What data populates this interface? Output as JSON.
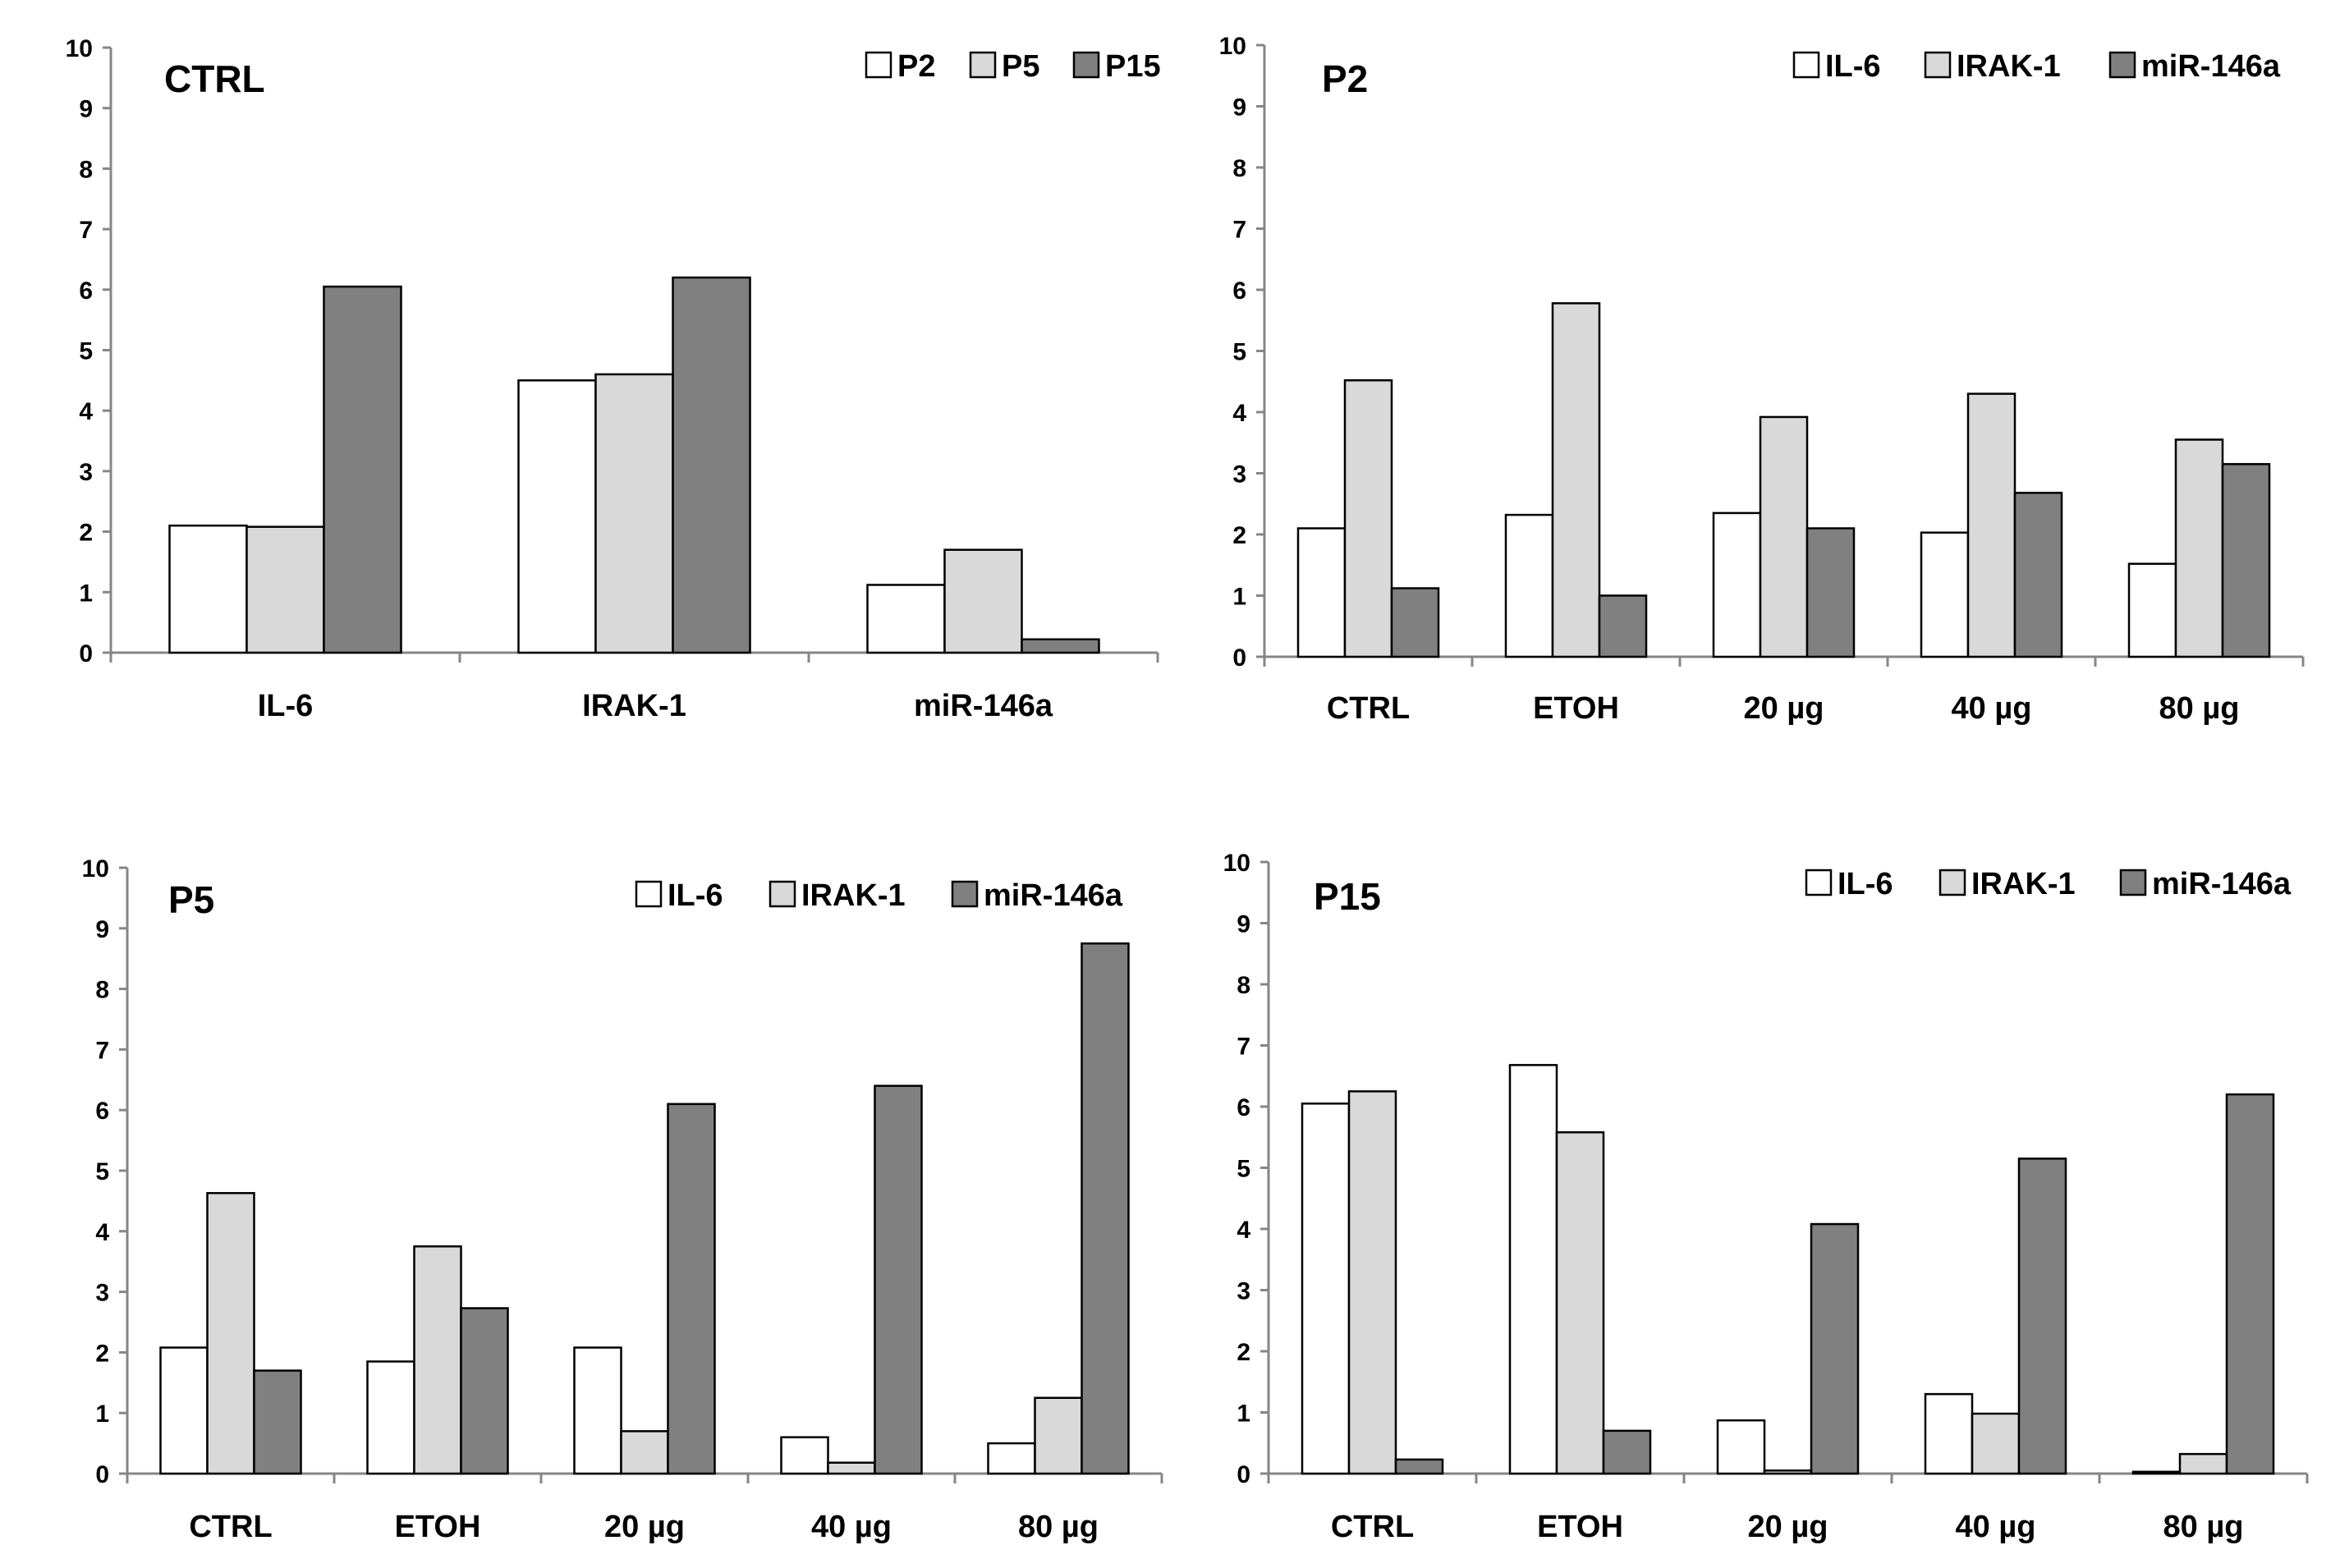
{
  "chart_data": [
    {
      "type": "bar",
      "title": "CTRL",
      "categories": [
        "IL-6",
        "IRAK-1",
        "miR-146a"
      ],
      "series": [
        {
          "name": "P2",
          "values": [
            2.1,
            4.5,
            1.12
          ]
        },
        {
          "name": "P5",
          "values": [
            2.08,
            4.6,
            1.7
          ]
        },
        {
          "name": "P15",
          "values": [
            6.05,
            6.2,
            0.22
          ]
        }
      ],
      "ylim": [
        0,
        10
      ],
      "yticks": [
        "0",
        "1",
        "2",
        "3",
        "4",
        "5",
        "6",
        "7",
        "8",
        "9",
        "10"
      ],
      "legend_position": "top-right",
      "grid": false
    },
    {
      "type": "bar",
      "title": "P2",
      "categories": [
        "CTRL",
        "ETOH",
        "20 µg",
        "40 µg",
        "80 µg"
      ],
      "series": [
        {
          "name": "IL-6",
          "values": [
            2.1,
            2.32,
            2.35,
            2.03,
            1.52
          ]
        },
        {
          "name": "IRAK-1",
          "values": [
            4.52,
            5.78,
            3.92,
            4.3,
            3.55
          ]
        },
        {
          "name": "miR-146a",
          "values": [
            1.12,
            1.0,
            2.1,
            2.68,
            3.15
          ]
        }
      ],
      "ylim": [
        0,
        10
      ],
      "yticks": [
        "0",
        "1",
        "2",
        "3",
        "4",
        "5",
        "6",
        "7",
        "8",
        "9",
        "10"
      ],
      "legend_position": "top-right",
      "grid": false
    },
    {
      "type": "bar",
      "title": "P5",
      "categories": [
        "CTRL",
        "ETOH",
        "20 µg",
        "40 µg",
        "80 µg"
      ],
      "series": [
        {
          "name": "IL-6",
          "values": [
            2.08,
            1.85,
            2.08,
            0.6,
            0.5
          ]
        },
        {
          "name": "IRAK-1",
          "values": [
            4.63,
            3.75,
            0.7,
            0.18,
            1.25
          ]
        },
        {
          "name": "miR-146a",
          "values": [
            1.7,
            2.73,
            6.1,
            6.4,
            8.75
          ]
        }
      ],
      "ylim": [
        0,
        10
      ],
      "yticks": [
        "0",
        "1",
        "2",
        "3",
        "4",
        "5",
        "6",
        "7",
        "8",
        "9",
        "10"
      ],
      "legend_position": "top-right",
      "grid": false
    },
    {
      "type": "bar",
      "title": "P15",
      "categories": [
        "CTRL",
        "ETOH",
        "20 µg",
        "40 µg",
        "80 µg"
      ],
      "series": [
        {
          "name": "IL-6",
          "values": [
            6.05,
            6.68,
            0.87,
            1.3,
            0.03
          ]
        },
        {
          "name": "IRAK-1",
          "values": [
            6.25,
            5.58,
            0.05,
            0.98,
            0.32
          ]
        },
        {
          "name": "miR-146a",
          "values": [
            0.23,
            0.7,
            4.08,
            5.15,
            6.2
          ]
        }
      ],
      "ylim": [
        0,
        10
      ],
      "yticks": [
        "0",
        "1",
        "2",
        "3",
        "4",
        "5",
        "6",
        "7",
        "8",
        "9",
        "10"
      ],
      "legend_position": "top-right",
      "grid": false
    }
  ],
  "colors": {
    "series": [
      "#ffffff",
      "#d9d9d9",
      "#808080"
    ],
    "stroke": "#000000",
    "axis": "#868686"
  }
}
